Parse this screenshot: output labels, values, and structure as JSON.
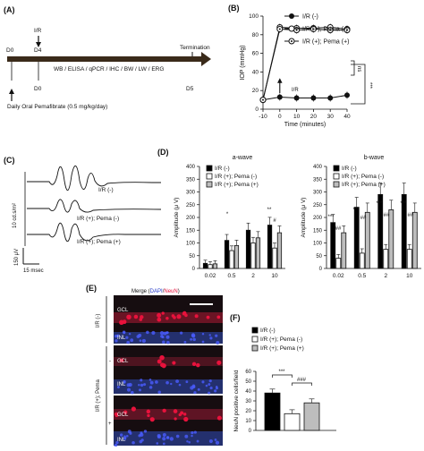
{
  "panels": {
    "A": {
      "letter": "(A)",
      "d0_top": "D0",
      "ir": "I/R",
      "d4": "D4",
      "assays": "WB / ELISA / qPCR / IHC / BW / LW / ERG",
      "termination": "Termination",
      "d0_bottom": "D0",
      "d5": "D5",
      "regimen": "Daily Oral Pemafibrate (0.5 mg/kg/day)"
    },
    "B": {
      "letter": "(B)",
      "arrow_label": "I/R",
      "sig_ns": "ns",
      "sig_main": "***"
    },
    "C": {
      "letter": "(C)",
      "traces": [
        "I/R (-)",
        "I/R (+); Pema (-)",
        "I/R (+); Pema (+)"
      ],
      "scale_y_left": "10 cd.s/m²",
      "scale_y": "150 μV",
      "scale_x": "15 msec"
    },
    "D": {
      "letter": "(D)",
      "a_annotations": [
        "*",
        "**",
        "#"
      ],
      "b_annotations": [
        "***",
        "##",
        "***",
        "##",
        "***",
        "##",
        "***",
        "##"
      ]
    },
    "E": {
      "letter": "(E)",
      "title_prefix": "Merge (",
      "title_dapi": "DAPI",
      "title_sep": "/",
      "title_neun": "NeuN",
      "title_suffix": ")",
      "group1": "I/R (-)",
      "group2": "I/R (+); Pema",
      "minus": "-",
      "plus": "+",
      "gcl": "GCL",
      "inl": "INL"
    },
    "F": {
      "letter": "(F)",
      "sig1": "***",
      "sig2": "###"
    }
  },
  "legend": [
    "I/R (-)",
    "I/R (+); Pema (-)",
    "I/R (+); Pema (+)"
  ],
  "colors": {
    "black": "#000000",
    "white": "#ffffff",
    "gray": "#bdbdbd",
    "red": "#e8123c",
    "blue": "#2236c8",
    "arrow": "#3a2a1a"
  },
  "chart_data": [
    {
      "id": "B",
      "type": "line",
      "ylabel": "IOP (mmHg)",
      "xlabel": "Time (minutes)",
      "x": [
        -10,
        0,
        10,
        20,
        30,
        40
      ],
      "xticks": [
        -10,
        0,
        10,
        20,
        30,
        40
      ],
      "xlim": [
        -10,
        40
      ],
      "ylim": [
        0,
        100
      ],
      "yticks": [
        0,
        20,
        40,
        60,
        80,
        100
      ],
      "series": [
        {
          "name": "I/R (-)",
          "marker": "filled",
          "values": [
            10,
            13,
            12,
            12,
            12,
            15
          ]
        },
        {
          "name": "I/R (+); Pema (-)",
          "marker": "open",
          "values": [
            10,
            88,
            87,
            87,
            88,
            86
          ]
        },
        {
          "name": "I/R (+); Pema (+)",
          "marker": "open-center",
          "values": [
            10,
            86,
            85,
            86,
            85,
            85
          ]
        }
      ]
    },
    {
      "id": "D-a",
      "type": "bar",
      "title": "a-wave",
      "ylabel": "Amplitude (μ V)",
      "categories": [
        "0.02",
        "0.5",
        "2",
        "10"
      ],
      "ylim": [
        0,
        400
      ],
      "yticks": [
        0,
        50,
        100,
        150,
        200,
        250,
        300,
        350,
        400
      ],
      "series": [
        {
          "name": "I/R (-)",
          "values": [
            20,
            110,
            150,
            170
          ]
        },
        {
          "name": "I/R (+); Pema (-)",
          "values": [
            15,
            70,
            100,
            80
          ]
        },
        {
          "name": "I/R (+); Pema (+)",
          "values": [
            18,
            90,
            120,
            140
          ]
        }
      ]
    },
    {
      "id": "D-b",
      "type": "bar",
      "title": "b-wave",
      "ylabel": "Amplitude (μ V)",
      "categories": [
        "0.02",
        "0.5",
        "2",
        "10"
      ],
      "ylim": [
        0,
        400
      ],
      "yticks": [
        0,
        50,
        100,
        150,
        200,
        250,
        300,
        350,
        400
      ],
      "series": [
        {
          "name": "I/R (-)",
          "values": [
            180,
            240,
            290,
            290
          ]
        },
        {
          "name": "I/R (+); Pema (-)",
          "values": [
            40,
            60,
            75,
            75
          ]
        },
        {
          "name": "I/R (+); Pema (+)",
          "values": [
            140,
            220,
            230,
            220
          ]
        }
      ]
    },
    {
      "id": "F",
      "type": "bar",
      "ylabel": "NeuN positive cells/field",
      "categories": [
        "I/R (-)",
        "I/R (+); Pema (-)",
        "I/R (+); Pema (+)"
      ],
      "ylim": [
        0,
        60
      ],
      "yticks": [
        0,
        10,
        20,
        30,
        40,
        50,
        60
      ],
      "values": [
        38,
        17,
        28
      ]
    }
  ]
}
